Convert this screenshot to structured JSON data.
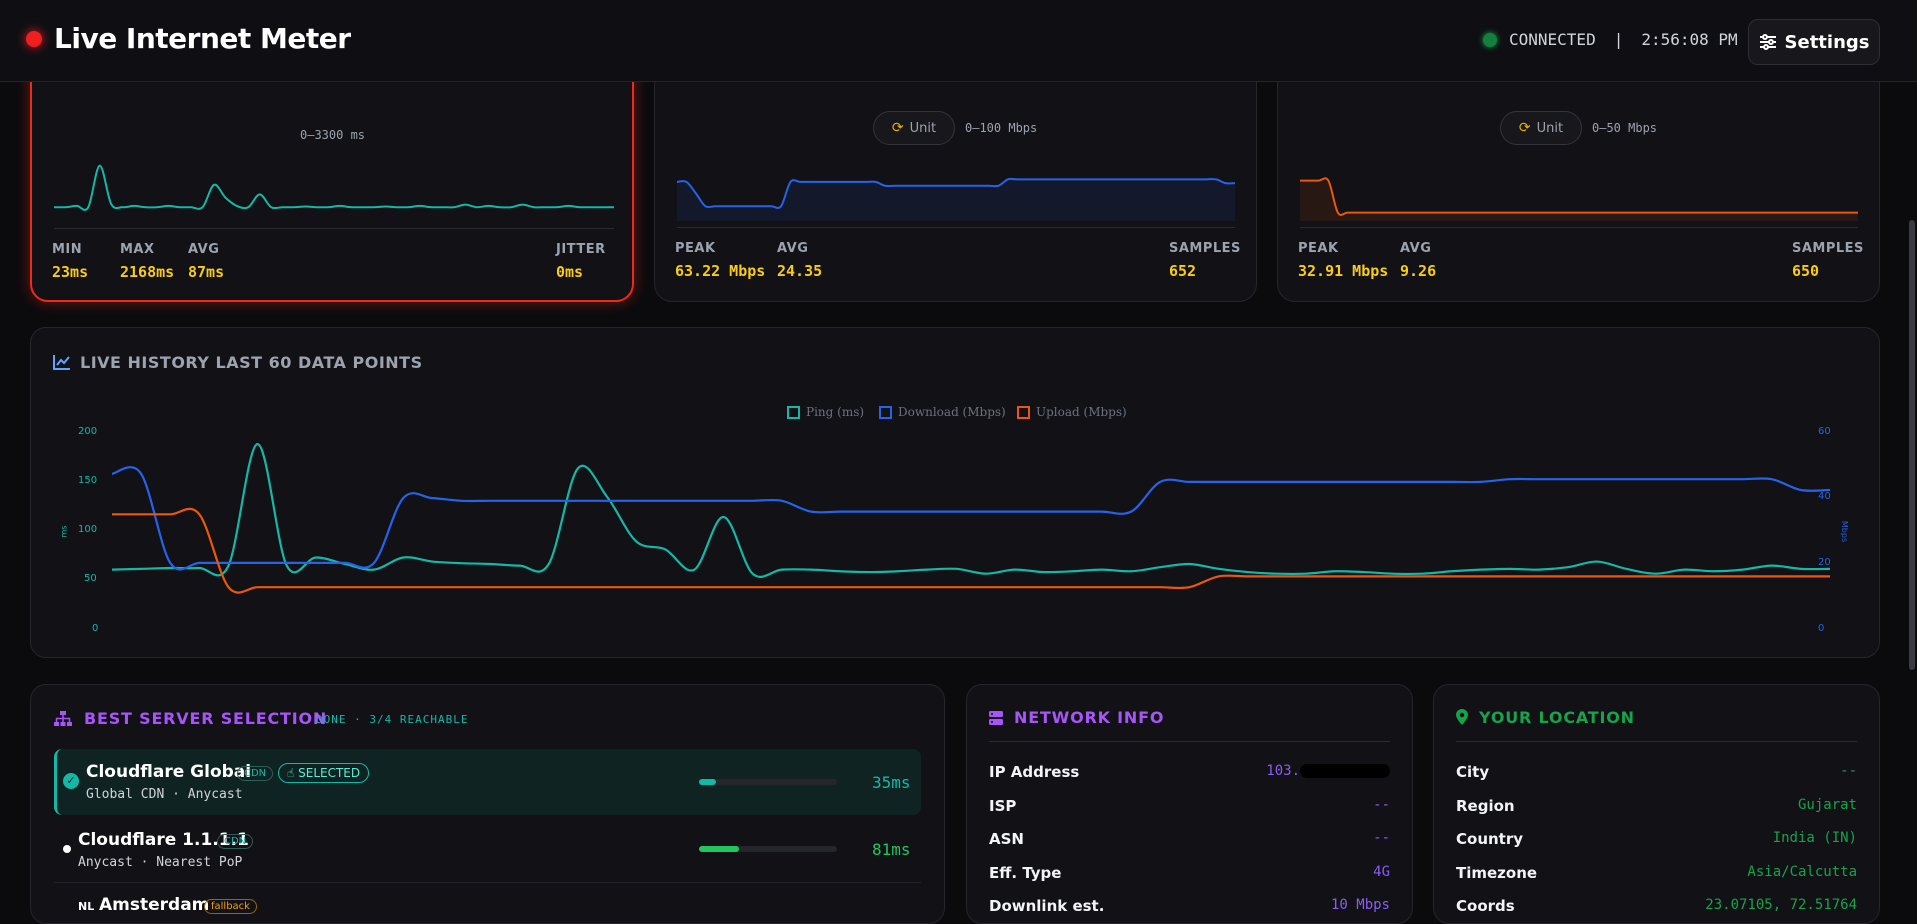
{
  "header": {
    "title": "Live Internet Meter",
    "status": "CONNECTED",
    "separator": "|",
    "time": "2:56:08 PM",
    "settings_label": "Settings"
  },
  "ping_card": {
    "range": "0–3300 ms",
    "stats": [
      {
        "label": "MIN",
        "value": "23ms"
      },
      {
        "label": "MAX",
        "value": "2168ms"
      },
      {
        "label": "AVG",
        "value": "87ms"
      },
      {
        "label": "JITTER",
        "value": "0ms"
      }
    ]
  },
  "download_card": {
    "unit_label": "Unit",
    "range": "0–100 Mbps",
    "stats": [
      {
        "label": "PEAK",
        "value": "63.22 Mbps"
      },
      {
        "label": "AVG",
        "value": "24.35"
      },
      {
        "label": "SAMPLES",
        "value": "652"
      }
    ]
  },
  "upload_card": {
    "unit_label": "Unit",
    "range": "0–50 Mbps",
    "stats": [
      {
        "label": "PEAK",
        "value": "32.91 Mbps"
      },
      {
        "label": "AVG",
        "value": "9.26"
      },
      {
        "label": "SAMPLES",
        "value": "650"
      }
    ]
  },
  "history": {
    "title": "LIVE HISTORY LAST 60 DATA POINTS"
  },
  "chart_data": {
    "type": "line",
    "legend_position": "top-center",
    "series": [
      {
        "name": "Ping (ms)",
        "color": "#14b8a6",
        "axis": "left",
        "values": [
          35,
          36,
          37,
          37,
          40,
          190,
          40,
          50,
          42,
          35,
          50,
          45,
          43,
          42,
          40,
          42,
          160,
          125,
          70,
          60,
          35,
          100,
          30,
          35,
          35,
          33,
          32,
          33,
          35,
          36,
          30,
          35,
          32,
          33,
          35,
          33,
          38,
          42,
          36,
          32,
          30,
          30,
          33,
          32,
          30,
          30,
          33,
          35,
          36,
          35,
          38,
          45,
          36,
          30,
          35,
          33,
          35,
          40,
          36,
          36
        ]
      },
      {
        "name": "Download (Mbps)",
        "color": "#2563eb",
        "axis": "right",
        "values": [
          46,
          46,
          13,
          13,
          13,
          13,
          13,
          13,
          13,
          13,
          37,
          37,
          36,
          36,
          36,
          36,
          36,
          36,
          36,
          36,
          36,
          36,
          36,
          36,
          32,
          32,
          32,
          32,
          32,
          32,
          32,
          32,
          32,
          32,
          32,
          32,
          43,
          43,
          43,
          43,
          43,
          43,
          43,
          43,
          43,
          43,
          43,
          43,
          44,
          44,
          44,
          44,
          44,
          44,
          44,
          44,
          44,
          44,
          40,
          40
        ]
      },
      {
        "name": "Upload (Mbps)",
        "color": "#ea580c",
        "axis": "right",
        "values": [
          31,
          31,
          31,
          31,
          4,
          4,
          4,
          4,
          4,
          4,
          4,
          4,
          4,
          4,
          4,
          4,
          4,
          4,
          4,
          4,
          4,
          4,
          4,
          4,
          4,
          4,
          4,
          4,
          4,
          4,
          4,
          4,
          4,
          4,
          4,
          4,
          4,
          4,
          8,
          8,
          8,
          8,
          8,
          8,
          8,
          8,
          8,
          8,
          8,
          8,
          8,
          8,
          8,
          8,
          8,
          8,
          8,
          8,
          8,
          8
        ]
      }
    ],
    "y_left": {
      "label": "ms",
      "ticks": [
        "200",
        "150",
        "100",
        "50",
        "0"
      ],
      "range": [
        0,
        200
      ]
    },
    "y_right": {
      "label": "Mbps",
      "ticks": [
        "60",
        "40",
        "20",
        "0"
      ],
      "range": [
        0,
        60
      ]
    },
    "grid": false
  },
  "sparks": {
    "ping": [
      20,
      20,
      22,
      20,
      85,
      25,
      20,
      22,
      20,
      20,
      22,
      20,
      20,
      20,
      55,
      35,
      22,
      20,
      40,
      20,
      20,
      20,
      21,
      20,
      20,
      22,
      20,
      20,
      20,
      21,
      20,
      20,
      22,
      20,
      20,
      20,
      24,
      20,
      22,
      20,
      20,
      24,
      20,
      20,
      20,
      22,
      20,
      20,
      20,
      20
    ],
    "download": [
      58,
      58,
      40,
      20,
      20,
      20,
      20,
      20,
      20,
      20,
      20,
      20,
      58,
      58,
      58,
      58,
      58,
      58,
      58,
      58,
      58,
      58,
      52,
      52,
      52,
      52,
      52,
      52,
      52,
      52,
      52,
      52,
      52,
      52,
      52,
      62,
      62,
      62,
      62,
      62,
      62,
      62,
      62,
      62,
      62,
      62,
      62,
      62,
      62,
      62,
      62,
      62,
      62,
      62,
      62,
      62,
      62,
      62,
      56,
      56
    ],
    "upload": [
      60,
      60,
      60,
      60,
      10,
      10,
      10,
      10,
      10,
      10,
      10,
      10,
      10,
      10,
      10,
      10,
      10,
      10,
      10,
      10,
      10,
      10,
      10,
      10,
      10,
      10,
      10,
      10,
      10,
      10,
      10,
      10,
      10,
      10,
      10,
      10,
      10,
      10,
      10,
      10,
      10,
      10,
      10,
      10,
      10,
      10,
      10,
      10,
      10,
      10,
      10,
      10,
      10,
      10,
      10,
      10,
      10,
      10,
      10,
      10
    ]
  },
  "servers": {
    "title": "BEST SERVER SELECTION",
    "subtitle": "DONE · 3/4 REACHABLE",
    "items": [
      {
        "name": "Cloudflare Global",
        "badge": "CDN",
        "selected_label": "SELECTED",
        "sub": "Global CDN · Anycast",
        "latency": "35ms",
        "fill": 0.12,
        "color": "#14b8a6"
      },
      {
        "name": "Cloudflare 1.1.1.1",
        "badge": "CDN",
        "sub": "Anycast · Nearest PoP",
        "latency": "81ms",
        "fill": 0.29,
        "color": "#22c55e"
      },
      {
        "flag": "NL",
        "name": "Amsterdam",
        "badge": "fallback"
      }
    ]
  },
  "network": {
    "title": "NETWORK INFO",
    "rows": [
      {
        "k": "IP Address",
        "v": "103."
      },
      {
        "k": "ISP",
        "v": "--"
      },
      {
        "k": "ASN",
        "v": "--"
      },
      {
        "k": "Eff. Type",
        "v": "4G"
      },
      {
        "k": "Downlink est.",
        "v": "10 Mbps"
      }
    ]
  },
  "location": {
    "title": "YOUR LOCATION",
    "rows": [
      {
        "k": "City",
        "v": "--"
      },
      {
        "k": "Region",
        "v": "Gujarat"
      },
      {
        "k": "Country",
        "v": "India (IN)"
      },
      {
        "k": "Timezone",
        "v": "Asia/Calcutta"
      },
      {
        "k": "Coords",
        "v": "23.07105, 72.51764"
      }
    ]
  }
}
